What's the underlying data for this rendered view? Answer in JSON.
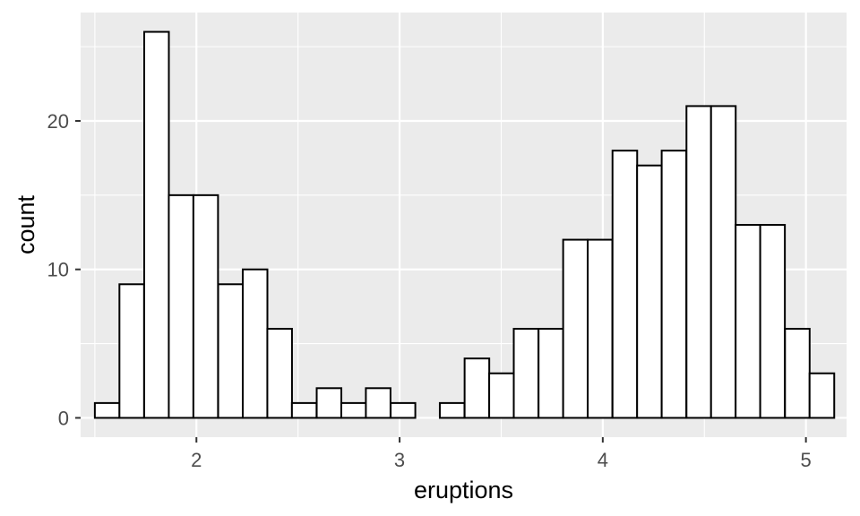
{
  "chart_data": {
    "type": "bar",
    "subtype": "histogram",
    "title": "",
    "xlabel": "eruptions",
    "ylabel": "count",
    "xlim": [
      1.43,
      5.2
    ],
    "ylim": [
      -1.3,
      27.3
    ],
    "x_ticks": [
      2,
      3,
      4,
      5
    ],
    "y_ticks": [
      0,
      10,
      20
    ],
    "bin_width": 0.1213,
    "bins": [
      {
        "x_start": 1.5,
        "count": 1
      },
      {
        "x_start": 1.621,
        "count": 9
      },
      {
        "x_start": 1.743,
        "count": 26
      },
      {
        "x_start": 1.864,
        "count": 15
      },
      {
        "x_start": 1.985,
        "count": 15
      },
      {
        "x_start": 2.107,
        "count": 9
      },
      {
        "x_start": 2.228,
        "count": 10
      },
      {
        "x_start": 2.349,
        "count": 6
      },
      {
        "x_start": 2.47,
        "count": 1
      },
      {
        "x_start": 2.592,
        "count": 2
      },
      {
        "x_start": 2.713,
        "count": 1
      },
      {
        "x_start": 2.834,
        "count": 2
      },
      {
        "x_start": 2.956,
        "count": 1
      },
      {
        "x_start": 3.077,
        "count": 0
      },
      {
        "x_start": 3.198,
        "count": 1
      },
      {
        "x_start": 3.32,
        "count": 4
      },
      {
        "x_start": 3.441,
        "count": 3
      },
      {
        "x_start": 3.562,
        "count": 6
      },
      {
        "x_start": 3.684,
        "count": 6
      },
      {
        "x_start": 3.805,
        "count": 12
      },
      {
        "x_start": 3.926,
        "count": 12
      },
      {
        "x_start": 4.048,
        "count": 18
      },
      {
        "x_start": 4.169,
        "count": 17
      },
      {
        "x_start": 4.29,
        "count": 18
      },
      {
        "x_start": 4.412,
        "count": 21
      },
      {
        "x_start": 4.533,
        "count": 21
      },
      {
        "x_start": 4.654,
        "count": 13
      },
      {
        "x_start": 4.775,
        "count": 13
      },
      {
        "x_start": 4.897,
        "count": 6
      },
      {
        "x_start": 5.018,
        "count": 3
      }
    ],
    "colors": {
      "panel_background": "#ebebeb",
      "grid": "#ffffff",
      "bar_fill": "#ffffff",
      "bar_outline": "#000000",
      "tick_text": "#4d4d4d",
      "tick_mark": "#333333"
    },
    "grid": true,
    "legend": "none"
  }
}
